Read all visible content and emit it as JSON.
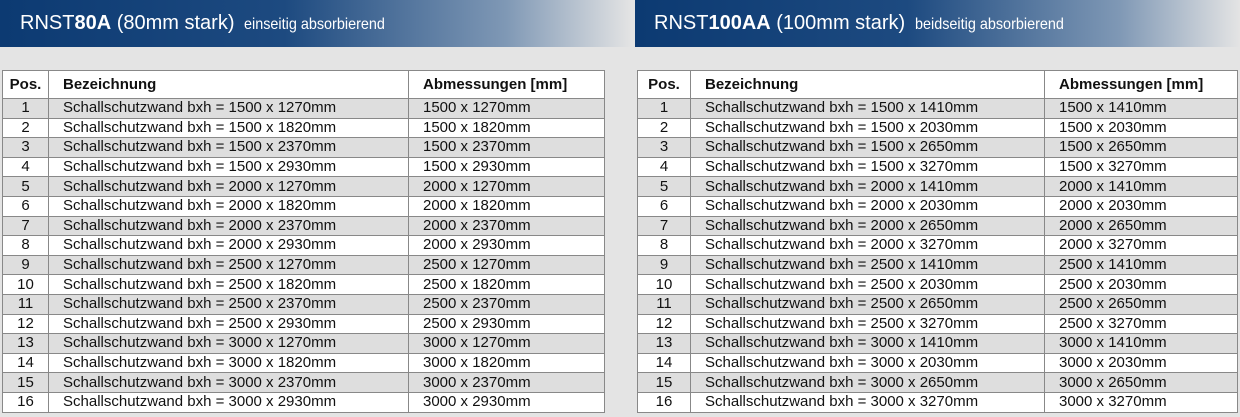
{
  "left": {
    "title_prefix": "RNST",
    "title_bold": "80A",
    "title_rest": " (80mm stark)",
    "subtitle": "einseitig absorbierend",
    "headers": {
      "pos": "Pos.",
      "name": "Bezeichnung",
      "dims": "Abmessungen [mm]"
    },
    "rows": [
      {
        "pos": "1",
        "name": "Schallschutzwand bxh = 1500 x 1270mm",
        "dims": "1500 x 1270mm"
      },
      {
        "pos": "2",
        "name": "Schallschutzwand bxh = 1500 x 1820mm",
        "dims": "1500 x 1820mm"
      },
      {
        "pos": "3",
        "name": "Schallschutzwand bxh = 1500 x 2370mm",
        "dims": "1500 x 2370mm"
      },
      {
        "pos": "4",
        "name": "Schallschutzwand bxh = 1500 x 2930mm",
        "dims": "1500 x 2930mm"
      },
      {
        "pos": "5",
        "name": "Schallschutzwand bxh = 2000 x 1270mm",
        "dims": "2000 x 1270mm"
      },
      {
        "pos": "6",
        "name": "Schallschutzwand bxh = 2000 x 1820mm",
        "dims": "2000 x 1820mm"
      },
      {
        "pos": "7",
        "name": "Schallschutzwand bxh = 2000 x 2370mm",
        "dims": "2000 x 2370mm"
      },
      {
        "pos": "8",
        "name": "Schallschutzwand bxh = 2000 x 2930mm",
        "dims": "2000 x 2930mm"
      },
      {
        "pos": "9",
        "name": "Schallschutzwand bxh = 2500 x 1270mm",
        "dims": "2500 x 1270mm"
      },
      {
        "pos": "10",
        "name": "Schallschutzwand bxh = 2500 x 1820mm",
        "dims": "2500 x 1820mm"
      },
      {
        "pos": "11",
        "name": "Schallschutzwand bxh = 2500 x 2370mm",
        "dims": "2500 x 2370mm"
      },
      {
        "pos": "12",
        "name": "Schallschutzwand bxh = 2500 x 2930mm",
        "dims": "2500 x 2930mm"
      },
      {
        "pos": "13",
        "name": "Schallschutzwand bxh = 3000 x 1270mm",
        "dims": "3000 x 1270mm"
      },
      {
        "pos": "14",
        "name": "Schallschutzwand bxh = 3000 x 1820mm",
        "dims": "3000 x 1820mm"
      },
      {
        "pos": "15",
        "name": "Schallschutzwand bxh = 3000 x 2370mm",
        "dims": "3000 x 2370mm"
      },
      {
        "pos": "16",
        "name": "Schallschutzwand bxh = 3000 x 2930mm",
        "dims": "3000 x 2930mm"
      }
    ]
  },
  "right": {
    "title_prefix": "RNST",
    "title_bold": "100AA",
    "title_rest": " (100mm stark)",
    "subtitle": "beidseitig absorbierend",
    "headers": {
      "pos": "Pos.",
      "name": "Bezeichnung",
      "dims": "Abmessungen [mm]"
    },
    "rows": [
      {
        "pos": "1",
        "name": "Schallschutzwand bxh = 1500 x 1410mm",
        "dims": "1500 x 1410mm"
      },
      {
        "pos": "2",
        "name": "Schallschutzwand bxh = 1500 x 2030mm",
        "dims": "1500 x 2030mm"
      },
      {
        "pos": "3",
        "name": "Schallschutzwand bxh = 1500 x 2650mm",
        "dims": "1500 x 2650mm"
      },
      {
        "pos": "4",
        "name": "Schallschutzwand bxh = 1500 x 3270mm",
        "dims": "1500 x 3270mm"
      },
      {
        "pos": "5",
        "name": "Schallschutzwand bxh = 2000 x 1410mm",
        "dims": "2000 x 1410mm"
      },
      {
        "pos": "6",
        "name": "Schallschutzwand bxh = 2000 x 2030mm",
        "dims": "2000 x 2030mm"
      },
      {
        "pos": "7",
        "name": "Schallschutzwand bxh = 2000 x 2650mm",
        "dims": "2000 x 2650mm"
      },
      {
        "pos": "8",
        "name": "Schallschutzwand bxh = 2000 x 3270mm",
        "dims": "2000 x 3270mm"
      },
      {
        "pos": "9",
        "name": "Schallschutzwand bxh = 2500 x 1410mm",
        "dims": "2500 x 1410mm"
      },
      {
        "pos": "10",
        "name": "Schallschutzwand bxh = 2500 x 2030mm",
        "dims": "2500 x 2030mm"
      },
      {
        "pos": "11",
        "name": "Schallschutzwand bxh = 2500 x 2650mm",
        "dims": "2500 x 2650mm"
      },
      {
        "pos": "12",
        "name": "Schallschutzwand bxh = 2500 x 3270mm",
        "dims": "2500 x 3270mm"
      },
      {
        "pos": "13",
        "name": "Schallschutzwand bxh = 3000 x 1410mm",
        "dims": "3000 x 1410mm"
      },
      {
        "pos": "14",
        "name": "Schallschutzwand bxh = 3000 x 2030mm",
        "dims": "3000 x 2030mm"
      },
      {
        "pos": "15",
        "name": "Schallschutzwand bxh = 3000 x 2650mm",
        "dims": "3000 x 2650mm"
      },
      {
        "pos": "16",
        "name": "Schallschutzwand bxh = 3000 x 3270mm",
        "dims": "3000 x 3270mm"
      }
    ]
  },
  "colors": {
    "header_band": "#0c3a72",
    "row_alt": "#dedede",
    "background": "#e4e4e4"
  }
}
